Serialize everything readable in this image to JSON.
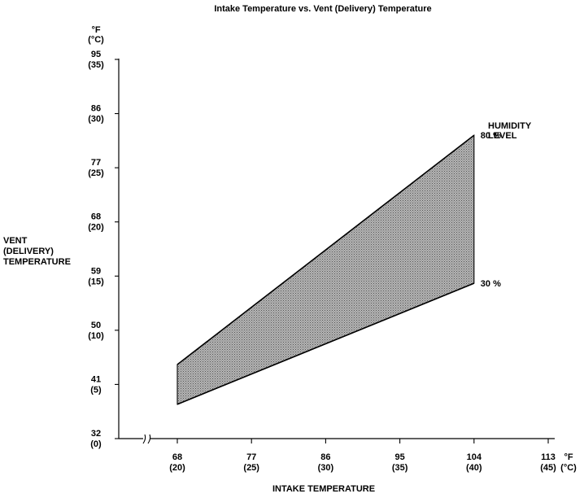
{
  "chart_data": {
    "type": "area",
    "title": "Intake Temperature vs. Vent (Delivery) Temperature",
    "xlabel": "INTAKE TEMPERATURE",
    "ylabel": [
      "VENT",
      "(DELIVERY)",
      "TEMPERATURE"
    ],
    "x_unit": [
      "°F",
      "(°C)"
    ],
    "y_unit": [
      "°F",
      "(°C)"
    ],
    "xlim": [
      59,
      113
    ],
    "ylim": [
      32,
      95
    ],
    "x_axis_break": true,
    "x_ticks": [
      {
        "f": 68,
        "f_label": "68",
        "c_label": "(20)"
      },
      {
        "f": 77,
        "f_label": "77",
        "c_label": "(25)"
      },
      {
        "f": 86,
        "f_label": "86",
        "c_label": "(30)"
      },
      {
        "f": 95,
        "f_label": "95",
        "c_label": "(35)"
      },
      {
        "f": 104,
        "f_label": "104",
        "c_label": "(40)"
      },
      {
        "f": 113,
        "f_label": "113",
        "c_label": "(45)"
      }
    ],
    "y_ticks": [
      {
        "f": 32,
        "f_label": "32",
        "c_label": "(0)"
      },
      {
        "f": 41,
        "f_label": "41",
        "c_label": "(5)"
      },
      {
        "f": 50,
        "f_label": "50",
        "c_label": "(10)"
      },
      {
        "f": 59,
        "f_label": "59",
        "c_label": "(15)"
      },
      {
        "f": 68,
        "f_label": "68",
        "c_label": "(20)"
      },
      {
        "f": 77,
        "f_label": "77",
        "c_label": "(25)"
      },
      {
        "f": 86,
        "f_label": "86",
        "c_label": "(30)"
      },
      {
        "f": 95,
        "f_label": "95",
        "c_label": "(35)"
      }
    ],
    "band_label": [
      "HUMIDITY",
      "LEVEL"
    ],
    "series": [
      {
        "name": "80 %",
        "x": [
          68,
          104
        ],
        "y": [
          44.3,
          82.4
        ]
      },
      {
        "name": "30 %",
        "x": [
          68,
          104
        ],
        "y": [
          37.7,
          57.8
        ]
      }
    ],
    "fill_color": "#a8a8a8",
    "line_color": "#000000",
    "grid": false
  }
}
